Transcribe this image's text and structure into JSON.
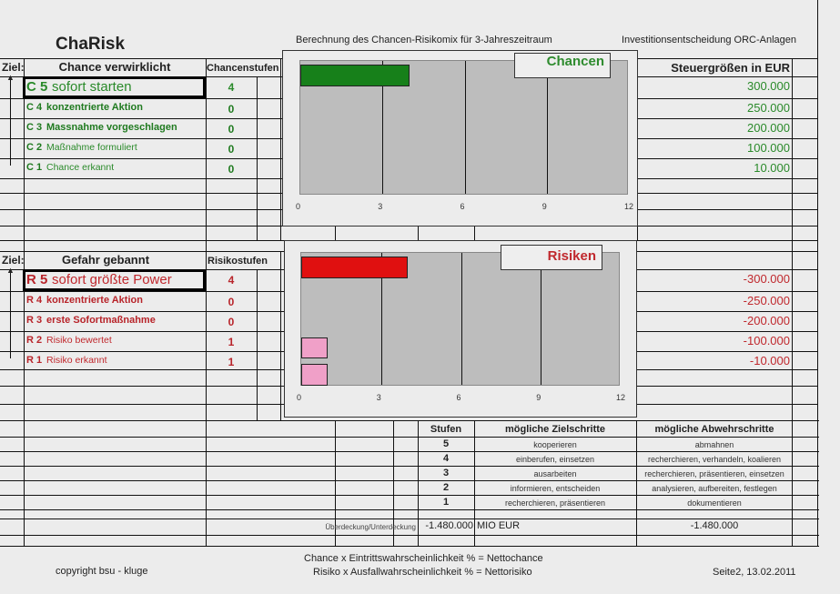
{
  "header": {
    "app_title": "ChaRisk",
    "subtitle": "Berechnung des Chancen-Risikomix für 3-Jahreszeitraum",
    "project": "Investitionsentscheidung ORC-Anlagen"
  },
  "chance": {
    "ziel_label": "Ziel:",
    "title": "Chance verwirklicht",
    "stufen_header": "Chancenstufen",
    "steuer_header": "Steuergrößen in EUR",
    "rows": [
      {
        "code": "C 5",
        "label": "sofort starten",
        "stufe": "4",
        "value": "300.000"
      },
      {
        "code": "C 4",
        "label": "konzentrierte Aktion",
        "stufe": "0",
        "value": "250.000"
      },
      {
        "code": "C 3",
        "label": "Massnahme vorgeschlagen",
        "stufe": "0",
        "value": "200.000"
      },
      {
        "code": "C 2",
        "label": "Maßnahme formuliert",
        "stufe": "0",
        "value": "100.000"
      },
      {
        "code": "C 1",
        "label": "Chance erkannt",
        "stufe": "0",
        "value": "10.000"
      }
    ]
  },
  "risk": {
    "ziel_label": "Ziel:",
    "title": "Gefahr gebannt",
    "stufen_header": "Risikostufen",
    "rows": [
      {
        "code": "R 5",
        "label": "sofort größte Power",
        "stufe": "4",
        "value": "-300.000"
      },
      {
        "code": "R 4",
        "label": "konzentrierte Aktion",
        "stufe": "0",
        "value": "-250.000"
      },
      {
        "code": "R 3",
        "label": "erste Sofortmaßnahme",
        "stufe": "0",
        "value": "-200.000"
      },
      {
        "code": "R 2",
        "label": "Risiko bewertet",
        "stufe": "1",
        "value": "-100.000"
      },
      {
        "code": "R 1",
        "label": "Risiko erkannt",
        "stufe": "1",
        "value": "-10.000"
      }
    ]
  },
  "chart_data": [
    {
      "type": "bar",
      "orientation": "horizontal",
      "legend": "Chancen",
      "categories": [
        "C 5",
        "C 4",
        "C 3",
        "C 2",
        "C 1"
      ],
      "values": [
        4,
        0,
        0,
        0,
        0
      ],
      "xlim": [
        0,
        12
      ],
      "xticks": [
        "0",
        "3",
        "6",
        "9",
        "12"
      ],
      "grid": true,
      "color": "#17801a"
    },
    {
      "type": "bar",
      "orientation": "horizontal",
      "legend": "Risiken",
      "categories": [
        "R 5",
        "R 4",
        "R 3",
        "R 2",
        "R 1"
      ],
      "values": [
        4,
        0,
        0,
        1,
        1
      ],
      "xlim": [
        0,
        12
      ],
      "xticks": [
        "0",
        "3",
        "6",
        "9",
        "12"
      ],
      "grid": true,
      "colors": [
        "#e01010",
        "#e01010",
        "#e01010",
        "#f0a0c8",
        "#f0a0c8"
      ]
    }
  ],
  "steps": {
    "headers": [
      "Stufen",
      "mögliche Zielschritte",
      "mögliche Abwehrschritte"
    ],
    "rows": [
      {
        "stufe": "5",
        "ziel": "kooperieren",
        "abwehr": "abmahnen"
      },
      {
        "stufe": "4",
        "ziel": "einberufen, einsetzen",
        "abwehr": "recherchieren, verhandeln, koalieren"
      },
      {
        "stufe": "3",
        "ziel": "ausarbeiten",
        "abwehr": "recherchieren, präsentieren, einsetzen"
      },
      {
        "stufe": "2",
        "ziel": "informieren, entscheiden",
        "abwehr": "analysieren, aufbereiten, festlegen"
      },
      {
        "stufe": "1",
        "ziel": "recherchieren, präsentieren",
        "abwehr": "dokumentieren"
      }
    ],
    "balance_label": "Überdeckung/Unterdeckung",
    "balance_value": "-1.480.000",
    "balance_unit": "MIO EUR",
    "balance_value2": "-1.480.000"
  },
  "footer": {
    "copyright": "copyright bsu - kluge",
    "formula1": "Chance x  Eintrittswahrscheinlichkeit % = Nettochance",
    "formula2": "Risiko x  Ausfallwahrscheinlichkeit % = Nettorisiko",
    "page": "Seite2, 13.02.2011"
  }
}
